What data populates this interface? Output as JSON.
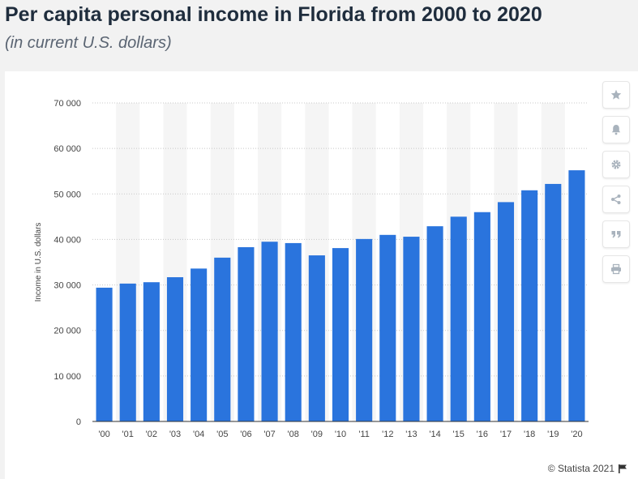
{
  "header": {
    "title": "Per capita personal income in Florida from 2000 to 2020",
    "subtitle": "(in current U.S. dollars)"
  },
  "toolbar": {
    "buttons": [
      {
        "name": "favorite-button",
        "icon": "star-icon"
      },
      {
        "name": "notification-button",
        "icon": "bell-icon"
      },
      {
        "name": "settings-button",
        "icon": "gear-icon"
      },
      {
        "name": "share-button",
        "icon": "share-icon"
      },
      {
        "name": "cite-button",
        "icon": "quote-icon"
      },
      {
        "name": "print-button",
        "icon": "printer-icon"
      }
    ]
  },
  "footer": {
    "credit": "© Statista 2021"
  },
  "colors": {
    "bar": "#2a74dd",
    "band": "#f5f5f5",
    "grid": "#c8c8c8",
    "axis": "#333333",
    "tick_text": "#444444"
  },
  "chart_data": {
    "type": "bar",
    "categories": [
      "'00",
      "'01",
      "'02",
      "'03",
      "'04",
      "'05",
      "'06",
      "'07",
      "'08",
      "'09",
      "'10",
      "'11",
      "'12",
      "'13",
      "'14",
      "'15",
      "'16",
      "'17",
      "'18",
      "'19",
      "'20"
    ],
    "values": [
      29400,
      30300,
      30600,
      31700,
      33600,
      36000,
      38300,
      39500,
      39200,
      36500,
      38100,
      40100,
      41000,
      40600,
      42900,
      45000,
      46000,
      48200,
      50800,
      52200,
      55200
    ],
    "ylabel": "Income in U.S. dollars",
    "xlabel": "",
    "ylim": [
      0,
      70000
    ],
    "yticks": [
      0,
      10000,
      20000,
      30000,
      40000,
      50000,
      60000,
      70000
    ],
    "ytick_labels": [
      "0",
      "10 000",
      "20 000",
      "30 000",
      "40 000",
      "50 000",
      "60 000",
      "70 000"
    ],
    "grid": true,
    "legend": "none"
  }
}
